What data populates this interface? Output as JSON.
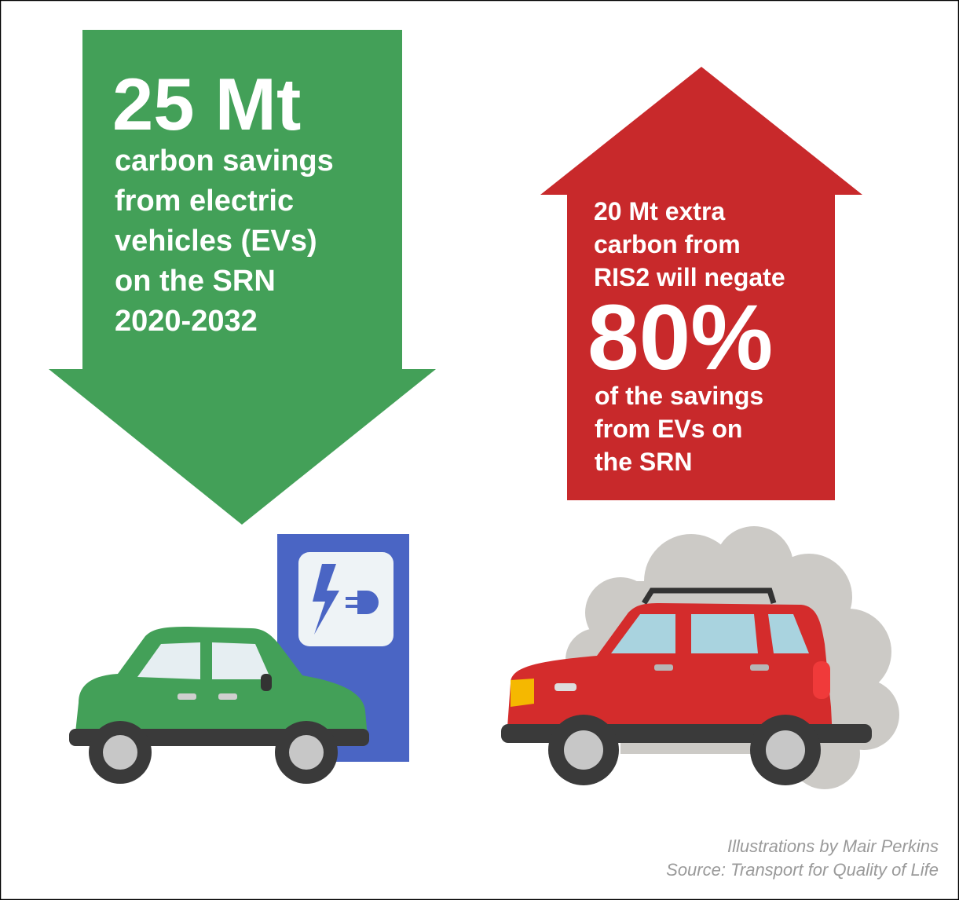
{
  "left_panel": {
    "headline": "25 Mt",
    "lines": [
      "carbon savings",
      "from electric",
      "vehicles (EVs)",
      "on the SRN",
      "2020-2032"
    ]
  },
  "right_panel": {
    "lines_before": [
      "20 Mt extra",
      "carbon from",
      "RIS2 will negate"
    ],
    "headline": "80%",
    "lines_after": [
      "of the savings",
      "from EVs on",
      "the SRN"
    ]
  },
  "credits": [
    "Illustrations by Mair Perkins",
    "Source: Transport for Quality of Life"
  ]
}
